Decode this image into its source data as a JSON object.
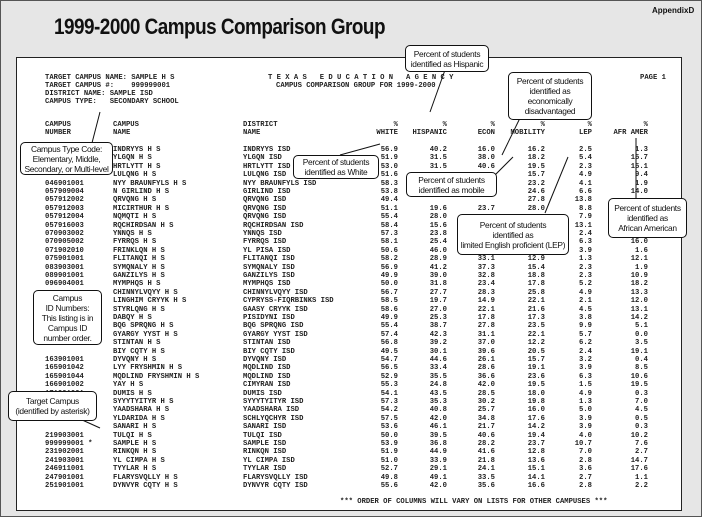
{
  "title": "1999-2000 Campus Comparison Group",
  "appendix": "AppendixD",
  "report": {
    "info": [
      "TARGET CAMPUS NAME: SAMPLE H S",
      "TARGET CAMPUS #:    999999001",
      "DISTRICT NAME: SAMPLE ISD",
      "CAMPUS TYPE:   SECONDARY SCHOOL"
    ],
    "agency": "T E X A S   E D U C A T I O N   A G E N C Y",
    "subtitle": "CAMPUS COMPARISON GROUP FOR 1999-2000",
    "page": "PAGE 1",
    "columns": {
      "campus_number": [
        "CAMPUS",
        "NUMBER"
      ],
      "campus_name": [
        "CAMPUS",
        "NAME"
      ],
      "district_name": [
        "DISTRICT",
        "NAME"
      ],
      "white": [
        "%",
        "WHITE"
      ],
      "hispanic": [
        "%",
        "HISPANIC"
      ],
      "econ": [
        "%",
        "ECON"
      ],
      "mobility": [
        "%",
        "MOBILITY"
      ],
      "lep": [
        "%",
        "LEP"
      ],
      "afr_amer": [
        "%",
        "AFR AMER"
      ]
    },
    "rows": [
      [
        "",
        "INDRYYS H S",
        "INDRYYS ISD",
        "56.9",
        "40.2",
        "16.0",
        "16.2",
        "2.5",
        "1.3"
      ],
      [
        "",
        "YLGQN H S",
        "YLGQN ISD",
        "51.9",
        "31.5",
        "38.0",
        "18.2",
        "5.4",
        "15.7"
      ],
      [
        "",
        "HRTLYTT H S",
        "HRTLYTT ISD",
        "53.0",
        "31.5",
        "40.6",
        "19.5",
        "2.3",
        "15.1"
      ],
      [
        "",
        "LULQNG H S",
        "LULQNG ISD",
        "51.6",
        "",
        "",
        "15.7",
        "4.9",
        "9.4"
      ],
      [
        "046901001",
        "NYY BRAUNFYLS H S",
        "NYY BRAUNFYLS ISD",
        "58.3",
        "",
        "",
        "23.2",
        "4.1",
        "1.9"
      ],
      [
        "057909004",
        "N GIRLIND H S",
        "GIRLIND ISD",
        "53.8",
        "",
        "",
        "24.6",
        "6.6",
        "14.0"
      ],
      [
        "057912002",
        "QRVQNG H S",
        "QRVQNG ISD",
        "49.4",
        "",
        "",
        "27.8",
        "13.8",
        ""
      ],
      [
        "057912003",
        "MICIRTHUR H S",
        "QRVQNG ISD",
        "51.1",
        "19.6",
        "23.7",
        "28.0",
        "8.8",
        ""
      ],
      [
        "057912004",
        "NQMQTI H S",
        "QRVQNG ISD",
        "55.4",
        "28.0",
        "",
        "",
        "7.9",
        ""
      ],
      [
        "057916003",
        "RQCHIRDSAN H S",
        "RQCHIRDSAN ISD",
        "58.4",
        "15.6",
        "",
        "",
        "13.1",
        ""
      ],
      [
        "070903002",
        "YNNQS H S",
        "YNNQS ISD",
        "57.3",
        "23.8",
        "",
        "",
        "2.4",
        ""
      ],
      [
        "070905002",
        "FYRRQS H S",
        "FYRRQS ISD",
        "58.1",
        "25.4",
        "",
        "",
        "6.3",
        "16.0"
      ],
      [
        "071902010",
        "FRINKLQN H S",
        "YL PISA ISD",
        "50.6",
        "46.0",
        "",
        "",
        "3.9",
        "1.6"
      ],
      [
        "075901001",
        "FLITANQI H S",
        "FLITANQI ISD",
        "58.2",
        "28.9",
        "33.1",
        "12.9",
        "1.3",
        "12.1"
      ],
      [
        "083903001",
        "SYMQNALY H S",
        "SYMQNALY ISD",
        "56.9",
        "41.2",
        "37.3",
        "15.4",
        "2.3",
        "1.9"
      ],
      [
        "089901001",
        "GANZILYS H S",
        "GANZILYS ISD",
        "49.9",
        "39.0",
        "32.8",
        "18.8",
        "2.3",
        "10.9"
      ],
      [
        "096904001",
        "MYMPHQS H S",
        "MYMPHQS ISD",
        "50.0",
        "31.8",
        "23.4",
        "17.8",
        "5.2",
        "18.2"
      ],
      [
        "",
        "CHINNYLVQYY H S",
        "CHINNYLVQYY ISD",
        "56.7",
        "27.7",
        "28.3",
        "25.8",
        "4.9",
        "13.3"
      ],
      [
        "",
        "LINGHIM CRYYK H S",
        "CYPRYSS-FIQRBINKS ISD",
        "58.5",
        "19.7",
        "14.9",
        "22.1",
        "2.1",
        "12.0"
      ],
      [
        "",
        "STYRLQNG H S",
        "GAASY CRYYK ISD",
        "58.6",
        "27.0",
        "22.1",
        "21.6",
        "4.5",
        "13.1"
      ],
      [
        "",
        "DABQY H S",
        "PISIDYNI ISD",
        "49.9",
        "25.3",
        "17.8",
        "17.3",
        "3.8",
        "14.2"
      ],
      [
        "",
        "BQG SPRQNG H S",
        "BQG SPRQNG ISD",
        "55.4",
        "38.7",
        "27.8",
        "23.5",
        "9.9",
        "5.1"
      ],
      [
        "",
        "GYARGY YYST H S",
        "GYARGY YYST ISD",
        "57.4",
        "42.3",
        "31.1",
        "22.1",
        "5.7",
        "0.0"
      ],
      [
        "",
        "STINTAN H S",
        "STINTAN ISD",
        "56.8",
        "39.2",
        "37.0",
        "12.2",
        "6.2",
        "3.5"
      ],
      [
        "",
        "BIY CQTY H S",
        "BIY CQTY ISD",
        "49.5",
        "30.1",
        "39.6",
        "20.5",
        "2.4",
        "19.1"
      ],
      [
        "163901001",
        "DYVQNY H S",
        "DYVQNY ISD",
        "54.7",
        "44.6",
        "26.1",
        "15.7",
        "3.2",
        "0.4"
      ],
      [
        "165901042",
        "LYY FRYSHMIN H S",
        "MQDLIND ISD",
        "56.5",
        "33.4",
        "28.6",
        "19.1",
        "3.9",
        "8.5"
      ],
      [
        "165901044",
        "MQDLIND FRYSHMIN H S",
        "MQDLIND ISD",
        "52.9",
        "35.5",
        "36.6",
        "23.6",
        "6.3",
        "10.6"
      ],
      [
        "166901002",
        "YAY H S",
        "CIMYRAN ISD",
        "55.3",
        "24.8",
        "42.0",
        "19.5",
        "1.5",
        "19.5"
      ],
      [
        "171901001",
        "DUMIS H S",
        "DUMIS ISD",
        "54.1",
        "43.5",
        "28.5",
        "18.0",
        "4.9",
        "0.3"
      ],
      [
        "",
        "SYYYTYITYR H S",
        "SYYYTYITYR ISD",
        "57.3",
        "35.3",
        "30.2",
        "19.8",
        "1.3",
        "7.0"
      ],
      [
        "",
        "YAADSHARA H S",
        "YAADSHARA ISD",
        "54.2",
        "40.8",
        "25.7",
        "16.0",
        "5.0",
        "4.5"
      ],
      [
        "",
        "YLDARIDA H S",
        "SCHLYQCHYR ISD",
        "57.5",
        "42.0",
        "34.8",
        "17.6",
        "3.9",
        "0.5"
      ],
      [
        "",
        "SANARI H S",
        "SANARI ISD",
        "53.6",
        "46.1",
        "21.7",
        "14.2",
        "3.9",
        "0.3"
      ],
      [
        "219903001",
        "TULQI H S",
        "TULQI ISD",
        "50.0",
        "39.5",
        "40.6",
        "19.4",
        "4.0",
        "10.2"
      ],
      [
        "999999001 *",
        "SAMPLE H S",
        "SAMPLE ISD",
        "53.9",
        "36.8",
        "28.2",
        "23.7",
        "10.7",
        "7.6"
      ],
      [
        "231902001",
        "RINKQN H S",
        "RINKQN ISD",
        "51.9",
        "44.9",
        "41.6",
        "12.8",
        "7.0",
        "2.7"
      ],
      [
        "241903001",
        "YL CIMPA H S",
        "YL CIMPA ISD",
        "51.0",
        "33.9",
        "21.8",
        "13.6",
        "2.8",
        "14.7"
      ],
      [
        "246911001",
        "TYYLAR H S",
        "TYYLAR ISD",
        "52.7",
        "29.1",
        "24.1",
        "15.1",
        "3.6",
        "17.6"
      ],
      [
        "247901001",
        "FLARYSVQLLY H S",
        "FLARYSVQLLY ISD",
        "49.8",
        "49.1",
        "33.5",
        "14.1",
        "2.7",
        "1.1"
      ],
      [
        "251901001",
        "DYNVYR CQTY H S",
        "DYNVYR CQTY ISD",
        "55.6",
        "42.0",
        "35.6",
        "16.6",
        "2.8",
        "2.2"
      ]
    ],
    "footer": "*** ORDER OF COLUMNS WILL VARY ON LISTS FOR OTHER CAMPUSES ***"
  },
  "callouts": {
    "hispanic": [
      "Percent of students",
      "identified as Hispanic"
    ],
    "econ": [
      "Percent of students",
      "identified as",
      "economically",
      "disadvantaged"
    ],
    "campus_type": [
      "Campus Type Code:",
      "Elementary, Middle,",
      "Secondary, or Multi-level"
    ],
    "white": [
      "Percent of students",
      "identified as White"
    ],
    "mobile": [
      "Percent of students",
      "identified as mobile"
    ],
    "lep": [
      "Percent of students",
      "identified as",
      "limited English proficient (LEP)"
    ],
    "afr_amer": [
      "Percent of students",
      "identified as",
      "African American"
    ],
    "campus_id": [
      "Campus",
      "ID Numbers:",
      "This listing is in",
      "Campus ID",
      "number order."
    ],
    "target": [
      "Target Campus",
      "(identified by asterisk)"
    ]
  }
}
